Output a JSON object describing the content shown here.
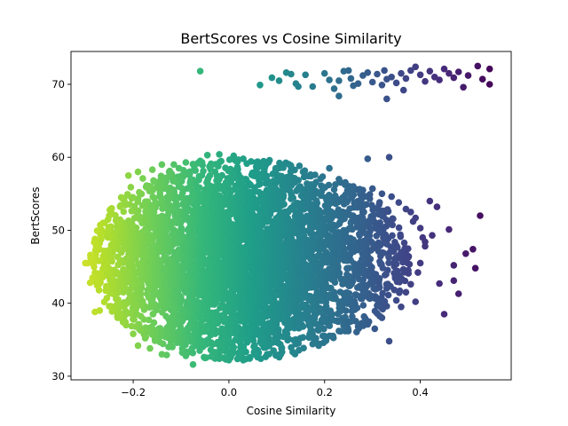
{
  "chart_data": {
    "type": "scatter",
    "title": "BertScores vs Cosine Similarity",
    "xlabel": "Cosine Similarity",
    "ylabel": "BertScores",
    "xlim": [
      -0.33,
      0.59
    ],
    "ylim": [
      29.5,
      74.5
    ],
    "xticks": [
      -0.2,
      0.0,
      0.2,
      0.4
    ],
    "xtick_labels": [
      "−0.2",
      "0.0",
      "0.2",
      "0.4"
    ],
    "yticks": [
      30,
      40,
      50,
      60,
      70
    ],
    "ytick_labels": [
      "30",
      "40",
      "50",
      "60",
      "70"
    ],
    "grid": false,
    "legend": "none",
    "colormap": "viridis",
    "color_encoding": "cosine similarity (high = dark purple, low = yellow-green)",
    "colors": [
      "#440154",
      "#3b528b",
      "#21918c",
      "#5ec962",
      "#c8e020"
    ],
    "cluster": {
      "x_range": [
        -0.31,
        0.55
      ],
      "y_range": [
        31.5,
        60.5
      ],
      "center": [
        0.02,
        46.0
      ]
    },
    "points": [
      [
        -0.06,
        71.8
      ],
      [
        0.065,
        69.9
      ],
      [
        0.09,
        70.9
      ],
      [
        0.12,
        71.6
      ],
      [
        0.13,
        71.4
      ],
      [
        0.14,
        70.1
      ],
      [
        0.16,
        71.3
      ],
      [
        0.175,
        69.7
      ],
      [
        0.2,
        71.5
      ],
      [
        0.21,
        70.6
      ],
      [
        0.22,
        69.4
      ],
      [
        0.23,
        70.5
      ],
      [
        0.24,
        71.8
      ],
      [
        0.25,
        71.9
      ],
      [
        0.255,
        70.8
      ],
      [
        0.26,
        69.8
      ],
      [
        0.27,
        70.1
      ],
      [
        0.28,
        71.2
      ],
      [
        0.29,
        71.6
      ],
      [
        0.3,
        70.3
      ],
      [
        0.31,
        71.4
      ],
      [
        0.32,
        69.9
      ],
      [
        0.325,
        71.9
      ],
      [
        0.33,
        70.7
      ],
      [
        0.34,
        71.0
      ],
      [
        0.35,
        70.2
      ],
      [
        0.36,
        71.5
      ],
      [
        0.365,
        69.2
      ],
      [
        0.37,
        70.8
      ],
      [
        0.38,
        71.9
      ],
      [
        0.39,
        72.4
      ],
      [
        0.4,
        71.3
      ],
      [
        0.41,
        70.4
      ],
      [
        0.42,
        71.8
      ],
      [
        0.43,
        71.0
      ],
      [
        0.44,
        70.6
      ],
      [
        0.45,
        72.1
      ],
      [
        0.46,
        71.5
      ],
      [
        0.47,
        70.9
      ],
      [
        0.48,
        71.7
      ],
      [
        0.49,
        69.6
      ],
      [
        0.5,
        71.2
      ],
      [
        0.52,
        72.5
      ],
      [
        0.53,
        70.7
      ],
      [
        0.545,
        72.1
      ],
      [
        0.545,
        70.0
      ],
      [
        0.23,
        68.4
      ],
      [
        0.33,
        68.0
      ],
      [
        0.145,
        69.7
      ],
      [
        0.105,
        70.5
      ],
      [
        0.29,
        59.8
      ],
      [
        0.335,
        60.0
      ],
      [
        0.42,
        54.0
      ],
      [
        0.435,
        53.2
      ],
      [
        0.525,
        52.0
      ],
      [
        0.51,
        47.4
      ],
      [
        0.515,
        44.8
      ],
      [
        0.47,
        45.2
      ],
      [
        0.48,
        41.3
      ],
      [
        0.44,
        42.7
      ],
      [
        0.425,
        49.3
      ],
      [
        0.39,
        40.2
      ],
      [
        0.375,
        44.5
      ],
      [
        0.32,
        38.0
      ],
      [
        0.335,
        34.8
      ],
      [
        0.29,
        37.1
      ],
      [
        0.305,
        36.5
      ],
      [
        0.36,
        39.5
      ],
      [
        0.45,
        38.5
      ],
      [
        0.355,
        46.5
      ],
      [
        0.385,
        51.2
      ],
      [
        0.41,
        47.8
      ],
      [
        0.46,
        50.1
      ],
      [
        0.495,
        46.8
      ],
      [
        0.47,
        43.1
      ],
      [
        -0.295,
        45.5
      ],
      [
        -0.28,
        38.8
      ],
      [
        -0.27,
        39.0
      ],
      [
        -0.275,
        47.5
      ],
      [
        -0.265,
        50.0
      ],
      [
        -0.285,
        43.5
      ],
      [
        -0.25,
        52.0
      ],
      [
        -0.24,
        41.5
      ],
      [
        -0.215,
        37.0
      ],
      [
        -0.2,
        35.8
      ],
      [
        -0.19,
        34.2
      ],
      [
        -0.165,
        33.8
      ],
      [
        -0.14,
        33.0
      ],
      [
        -0.13,
        32.9
      ],
      [
        -0.09,
        32.8
      ],
      [
        -0.075,
        31.6
      ],
      [
        -0.05,
        32.5
      ],
      [
        -0.02,
        32.4
      ],
      [
        0.0,
        32.2
      ],
      [
        0.03,
        32.2
      ],
      [
        0.06,
        32.6
      ],
      [
        0.08,
        33.0
      ],
      [
        0.11,
        33.8
      ],
      [
        0.14,
        34.4
      ],
      [
        0.175,
        34.4
      ],
      [
        0.2,
        35.5
      ],
      [
        0.23,
        36.2
      ],
      [
        0.255,
        37.5
      ],
      [
        -0.21,
        57.5
      ],
      [
        -0.19,
        58.0
      ],
      [
        -0.16,
        58.3
      ],
      [
        -0.14,
        59.0
      ],
      [
        -0.115,
        59.0
      ],
      [
        -0.09,
        59.3
      ],
      [
        -0.06,
        59.5
      ],
      [
        -0.045,
        60.3
      ],
      [
        -0.02,
        60.4
      ],
      [
        0.01,
        60.2
      ],
      [
        0.03,
        59.8
      ],
      [
        0.06,
        59.4
      ],
      [
        0.085,
        59.6
      ],
      [
        0.11,
        59.0
      ],
      [
        0.13,
        58.7
      ],
      [
        0.155,
        58.0
      ],
      [
        0.18,
        57.6
      ],
      [
        0.21,
        58.5
      ],
      [
        0.23,
        57.0
      ],
      [
        0.26,
        56.0
      ],
      [
        0.28,
        55.5
      ],
      [
        0.3,
        55.7
      ],
      [
        0.32,
        55.0
      ],
      [
        0.34,
        54.6
      ],
      [
        0.355,
        53.8
      ],
      [
        0.37,
        52.9
      ],
      [
        0.38,
        52.5
      ],
      [
        0.39,
        51.7
      ],
      [
        0.4,
        50.3
      ],
      [
        0.405,
        49.0
      ],
      [
        0.41,
        48.4
      ],
      [
        0.4,
        45.5
      ],
      [
        0.395,
        44.2
      ],
      [
        0.38,
        42.6
      ],
      [
        0.37,
        41.5
      ],
      [
        0.35,
        40.4
      ],
      [
        0.33,
        39.6
      ],
      [
        0.31,
        38.6
      ],
      [
        0.285,
        37.9
      ],
      [
        0.27,
        36.8
      ],
      [
        -0.3,
        45.5
      ],
      [
        -0.29,
        42.8
      ],
      [
        -0.28,
        48.8
      ],
      [
        -0.26,
        51.0
      ],
      [
        -0.255,
        40.7
      ],
      [
        -0.245,
        53.0
      ],
      [
        -0.235,
        39.7
      ],
      [
        -0.225,
        54.5
      ],
      [
        -0.22,
        37.9
      ],
      [
        -0.205,
        55.9
      ],
      [
        -0.195,
        36.8
      ],
      [
        -0.18,
        57.1
      ],
      [
        -0.175,
        35.2
      ]
    ]
  }
}
